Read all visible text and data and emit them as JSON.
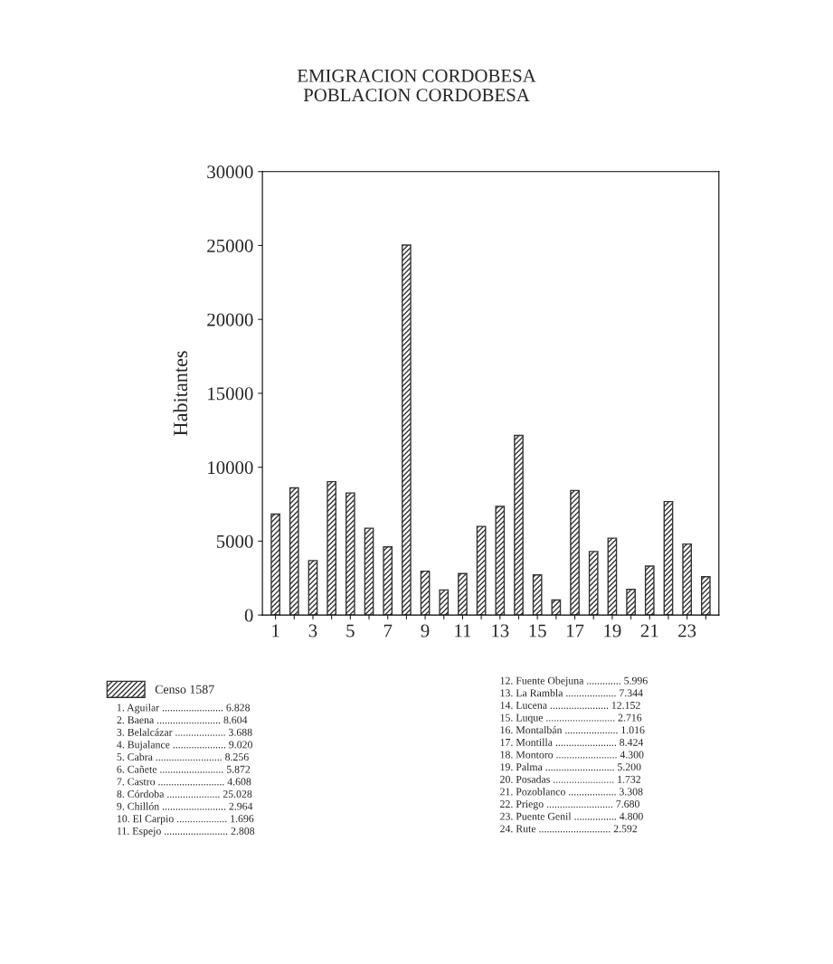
{
  "chart_data": {
    "type": "bar",
    "title": "EMIGRACION CORDOBESA",
    "subtitle": "POBLACION CORDOBESA",
    "ylabel": "Habitantes",
    "categories": [
      "1",
      null,
      "3",
      null,
      "5",
      null,
      "7",
      null,
      "9",
      null,
      "11",
      null,
      "13",
      null,
      "15",
      null,
      "17",
      null,
      "19",
      null,
      "21",
      null,
      "23",
      null
    ],
    "series": [
      {
        "name": "Censo 1587",
        "color": "#333333",
        "values": [
          6828,
          8604,
          3688,
          9020,
          8256,
          5872,
          4608,
          25028,
          2964,
          1696,
          2808,
          5996,
          7344,
          12152,
          2716,
          1016,
          8424,
          4300,
          5200,
          1732,
          3308,
          7680,
          4800,
          2592
        ]
      }
    ],
    "ylim": [
      0,
      30000
    ],
    "yticks": [
      0,
      5000,
      10000,
      15000,
      20000,
      25000,
      30000
    ],
    "legend": "bottom left",
    "annotations": [
      "1. Aguilar ....................... 6.828",
      "2. Baena ........................ 8.604",
      "3. Belalcázar ................... 3.688",
      "4. Bujalance .................... 9.020",
      "5. Cabra ......................... 8.256",
      "6. Cañete ........................ 5.872",
      "7. Castro ......................... 4.608",
      "8. Córdoba .................... 25.028",
      "9. Chillón ........................ 2.964",
      "10. El Carpio ................... 1.696",
      "11. Espejo ........................ 2.808",
      "12. Fuente Obejuna ............. 5.996",
      "13. La Rambla ................... 7.344",
      "14. Lucena ...................... 12.152",
      "15. Luque .......................... 2.716",
      "16. Montalbán .................... 1.016",
      "17. Montilla ....................... 8.424",
      "18. Montoro ....................... 4.300",
      "19. Palma .......................... 5.200",
      "20. Posadas ....................... 1.732",
      "21. Pozoblanco .................. 3.308",
      "22. Priego ......................... 7.680",
      "23. Puente Genil ................ 4.800",
      "24. Rute ........................... 2.592"
    ]
  }
}
